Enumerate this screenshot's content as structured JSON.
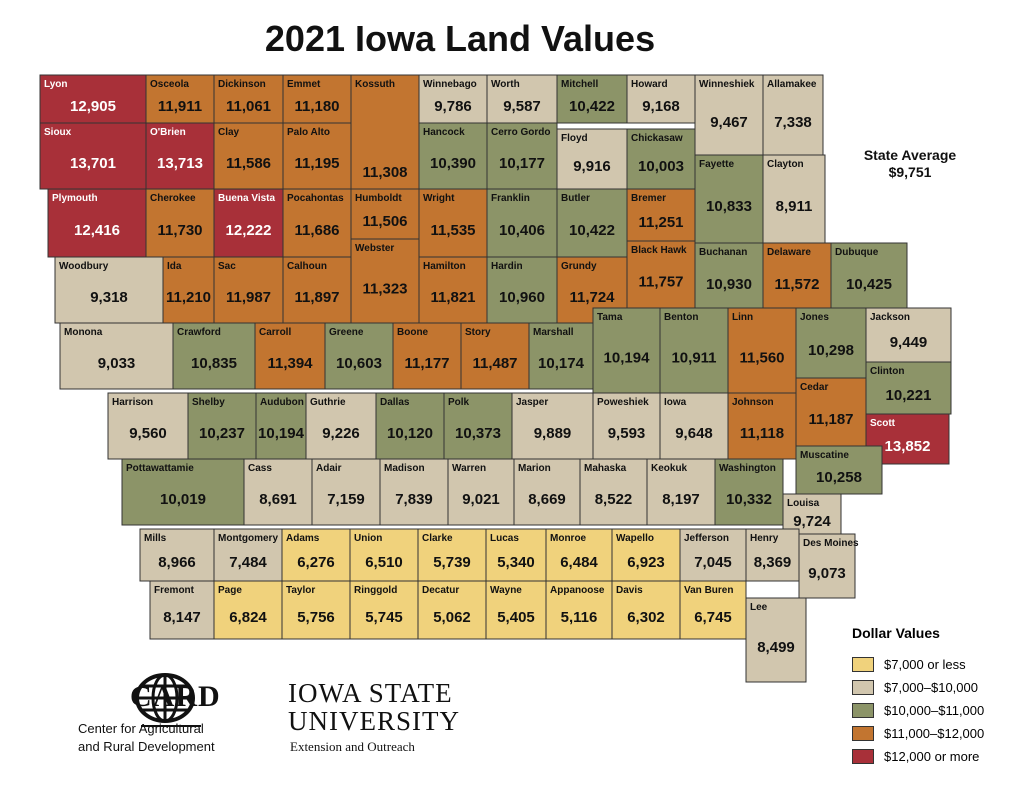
{
  "title": "2021 Iowa Land Values",
  "state_average": {
    "label": "State Average",
    "value": "$9,751"
  },
  "legend": {
    "title": "Dollar Values",
    "items": [
      {
        "label": "$7,000 or less",
        "color": "#f0d27c"
      },
      {
        "label": "$7,000–$10,000",
        "color": "#d1c6ae"
      },
      {
        "label": "$10,000–$11,000",
        "color": "#8c9468"
      },
      {
        "label": "$11,000–$12,000",
        "color": "#c27530"
      },
      {
        "label": "$12,000 or more",
        "color": "#a83039"
      }
    ]
  },
  "counties": [
    {
      "name": "Lyon",
      "value": "12,905",
      "tier": 4
    },
    {
      "name": "Osceola",
      "value": "11,911",
      "tier": 3
    },
    {
      "name": "Dickinson",
      "value": "11,061",
      "tier": 3
    },
    {
      "name": "Emmet",
      "value": "11,180",
      "tier": 3
    },
    {
      "name": "Kossuth",
      "value": "11,308",
      "tier": 3
    },
    {
      "name": "Winnebago",
      "value": "9,786",
      "tier": 1
    },
    {
      "name": "Worth",
      "value": "9,587",
      "tier": 1
    },
    {
      "name": "Mitchell",
      "value": "10,422",
      "tier": 2
    },
    {
      "name": "Howard",
      "value": "9,168",
      "tier": 1
    },
    {
      "name": "Winneshiek",
      "value": "9,467",
      "tier": 1
    },
    {
      "name": "Allamakee",
      "value": "7,338",
      "tier": 1
    },
    {
      "name": "Sioux",
      "value": "13,701",
      "tier": 4
    },
    {
      "name": "O'Brien",
      "value": "13,713",
      "tier": 4
    },
    {
      "name": "Clay",
      "value": "11,586",
      "tier": 3
    },
    {
      "name": "Palo Alto",
      "value": "11,195",
      "tier": 3
    },
    {
      "name": "Hancock",
      "value": "10,390",
      "tier": 2
    },
    {
      "name": "Cerro Gordo",
      "value": "10,177",
      "tier": 2
    },
    {
      "name": "Floyd",
      "value": "9,916",
      "tier": 1
    },
    {
      "name": "Chickasaw",
      "value": "10,003",
      "tier": 2
    },
    {
      "name": "Fayette",
      "value": "10,833",
      "tier": 2
    },
    {
      "name": "Clayton",
      "value": "8,911",
      "tier": 1
    },
    {
      "name": "Plymouth",
      "value": "12,416",
      "tier": 4
    },
    {
      "name": "Cherokee",
      "value": "11,730",
      "tier": 3
    },
    {
      "name": "Buena Vista",
      "value": "12,222",
      "tier": 4
    },
    {
      "name": "Pocahontas",
      "value": "11,686",
      "tier": 3
    },
    {
      "name": "Humboldt",
      "value": "11,506",
      "tier": 3
    },
    {
      "name": "Wright",
      "value": "11,535",
      "tier": 3
    },
    {
      "name": "Franklin",
      "value": "10,406",
      "tier": 2
    },
    {
      "name": "Butler",
      "value": "10,422",
      "tier": 2
    },
    {
      "name": "Bremer",
      "value": "11,251",
      "tier": 3
    },
    {
      "name": "Black Hawk",
      "value": "11,757",
      "tier": 3
    },
    {
      "name": "Buchanan",
      "value": "10,930",
      "tier": 2
    },
    {
      "name": "Delaware",
      "value": "11,572",
      "tier": 3
    },
    {
      "name": "Dubuque",
      "value": "10,425",
      "tier": 2
    },
    {
      "name": "Woodbury",
      "value": "9,318",
      "tier": 1
    },
    {
      "name": "Ida",
      "value": "11,210",
      "tier": 3
    },
    {
      "name": "Sac",
      "value": "11,987",
      "tier": 3
    },
    {
      "name": "Calhoun",
      "value": "11,897",
      "tier": 3
    },
    {
      "name": "Webster",
      "value": "11,323",
      "tier": 3
    },
    {
      "name": "Hamilton",
      "value": "11,821",
      "tier": 3
    },
    {
      "name": "Hardin",
      "value": "10,960",
      "tier": 2
    },
    {
      "name": "Grundy",
      "value": "11,724",
      "tier": 3
    },
    {
      "name": "Tama",
      "value": "10,194",
      "tier": 2
    },
    {
      "name": "Benton",
      "value": "10,911",
      "tier": 2
    },
    {
      "name": "Linn",
      "value": "11,560",
      "tier": 3
    },
    {
      "name": "Jones",
      "value": "10,298",
      "tier": 2
    },
    {
      "name": "Jackson",
      "value": "9,449",
      "tier": 1
    },
    {
      "name": "Monona",
      "value": "9,033",
      "tier": 1
    },
    {
      "name": "Crawford",
      "value": "10,835",
      "tier": 2
    },
    {
      "name": "Carroll",
      "value": "11,394",
      "tier": 3
    },
    {
      "name": "Greene",
      "value": "10,603",
      "tier": 2
    },
    {
      "name": "Boone",
      "value": "11,177",
      "tier": 3
    },
    {
      "name": "Story",
      "value": "11,487",
      "tier": 3
    },
    {
      "name": "Marshall",
      "value": "10,174",
      "tier": 2
    },
    {
      "name": "Clinton",
      "value": "10,221",
      "tier": 2
    },
    {
      "name": "Cedar",
      "value": "11,187",
      "tier": 3
    },
    {
      "name": "Harrison",
      "value": "9,560",
      "tier": 1
    },
    {
      "name": "Shelby",
      "value": "10,237",
      "tier": 2
    },
    {
      "name": "Audubon",
      "value": "10,194",
      "tier": 2
    },
    {
      "name": "Guthrie",
      "value": "9,226",
      "tier": 1
    },
    {
      "name": "Dallas",
      "value": "10,120",
      "tier": 2
    },
    {
      "name": "Polk",
      "value": "10,373",
      "tier": 2
    },
    {
      "name": "Jasper",
      "value": "9,889",
      "tier": 1
    },
    {
      "name": "Poweshiek",
      "value": "9,593",
      "tier": 1
    },
    {
      "name": "Iowa",
      "value": "9,648",
      "tier": 1
    },
    {
      "name": "Johnson",
      "value": "11,118",
      "tier": 3
    },
    {
      "name": "Scott",
      "value": "13,852",
      "tier": 4
    },
    {
      "name": "Muscatine",
      "value": "10,258",
      "tier": 2
    },
    {
      "name": "Pottawattamie",
      "value": "10,019",
      "tier": 2
    },
    {
      "name": "Cass",
      "value": "8,691",
      "tier": 1
    },
    {
      "name": "Adair",
      "value": "7,159",
      "tier": 1
    },
    {
      "name": "Madison",
      "value": "7,839",
      "tier": 1
    },
    {
      "name": "Warren",
      "value": "9,021",
      "tier": 1
    },
    {
      "name": "Marion",
      "value": "8,669",
      "tier": 1
    },
    {
      "name": "Mahaska",
      "value": "8,522",
      "tier": 1
    },
    {
      "name": "Keokuk",
      "value": "8,197",
      "tier": 1
    },
    {
      "name": "Washington",
      "value": "10,332",
      "tier": 2
    },
    {
      "name": "Louisa",
      "value": "9,724",
      "tier": 1
    },
    {
      "name": "Mills",
      "value": "8,966",
      "tier": 1
    },
    {
      "name": "Montgomery",
      "value": "7,484",
      "tier": 1
    },
    {
      "name": "Adams",
      "value": "6,276",
      "tier": 0
    },
    {
      "name": "Union",
      "value": "6,510",
      "tier": 0
    },
    {
      "name": "Clarke",
      "value": "5,739",
      "tier": 0
    },
    {
      "name": "Lucas",
      "value": "5,340",
      "tier": 0
    },
    {
      "name": "Monroe",
      "value": "6,484",
      "tier": 0
    },
    {
      "name": "Wapello",
      "value": "6,923",
      "tier": 0
    },
    {
      "name": "Jefferson",
      "value": "7,045",
      "tier": 1
    },
    {
      "name": "Henry",
      "value": "8,369",
      "tier": 1
    },
    {
      "name": "Des Moines",
      "value": "9,073",
      "tier": 1
    },
    {
      "name": "Fremont",
      "value": "8,147",
      "tier": 1
    },
    {
      "name": "Page",
      "value": "6,824",
      "tier": 0
    },
    {
      "name": "Taylor",
      "value": "5,756",
      "tier": 0
    },
    {
      "name": "Ringgold",
      "value": "5,745",
      "tier": 0
    },
    {
      "name": "Decatur",
      "value": "5,062",
      "tier": 0
    },
    {
      "name": "Wayne",
      "value": "5,405",
      "tier": 0
    },
    {
      "name": "Appanoose",
      "value": "5,116",
      "tier": 0
    },
    {
      "name": "Davis",
      "value": "6,302",
      "tier": 0
    },
    {
      "name": "Van Buren",
      "value": "6,745",
      "tier": 0
    },
    {
      "name": "Lee",
      "value": "8,499",
      "tier": 1
    }
  ],
  "logos": {
    "card": {
      "name": "CARD",
      "line1": "Center for Agricultural",
      "line2": "and Rural Development"
    },
    "isu": {
      "line1": "IOWA STATE",
      "line2": "UNIVERSITY",
      "line3": "Extension and Outreach"
    }
  }
}
